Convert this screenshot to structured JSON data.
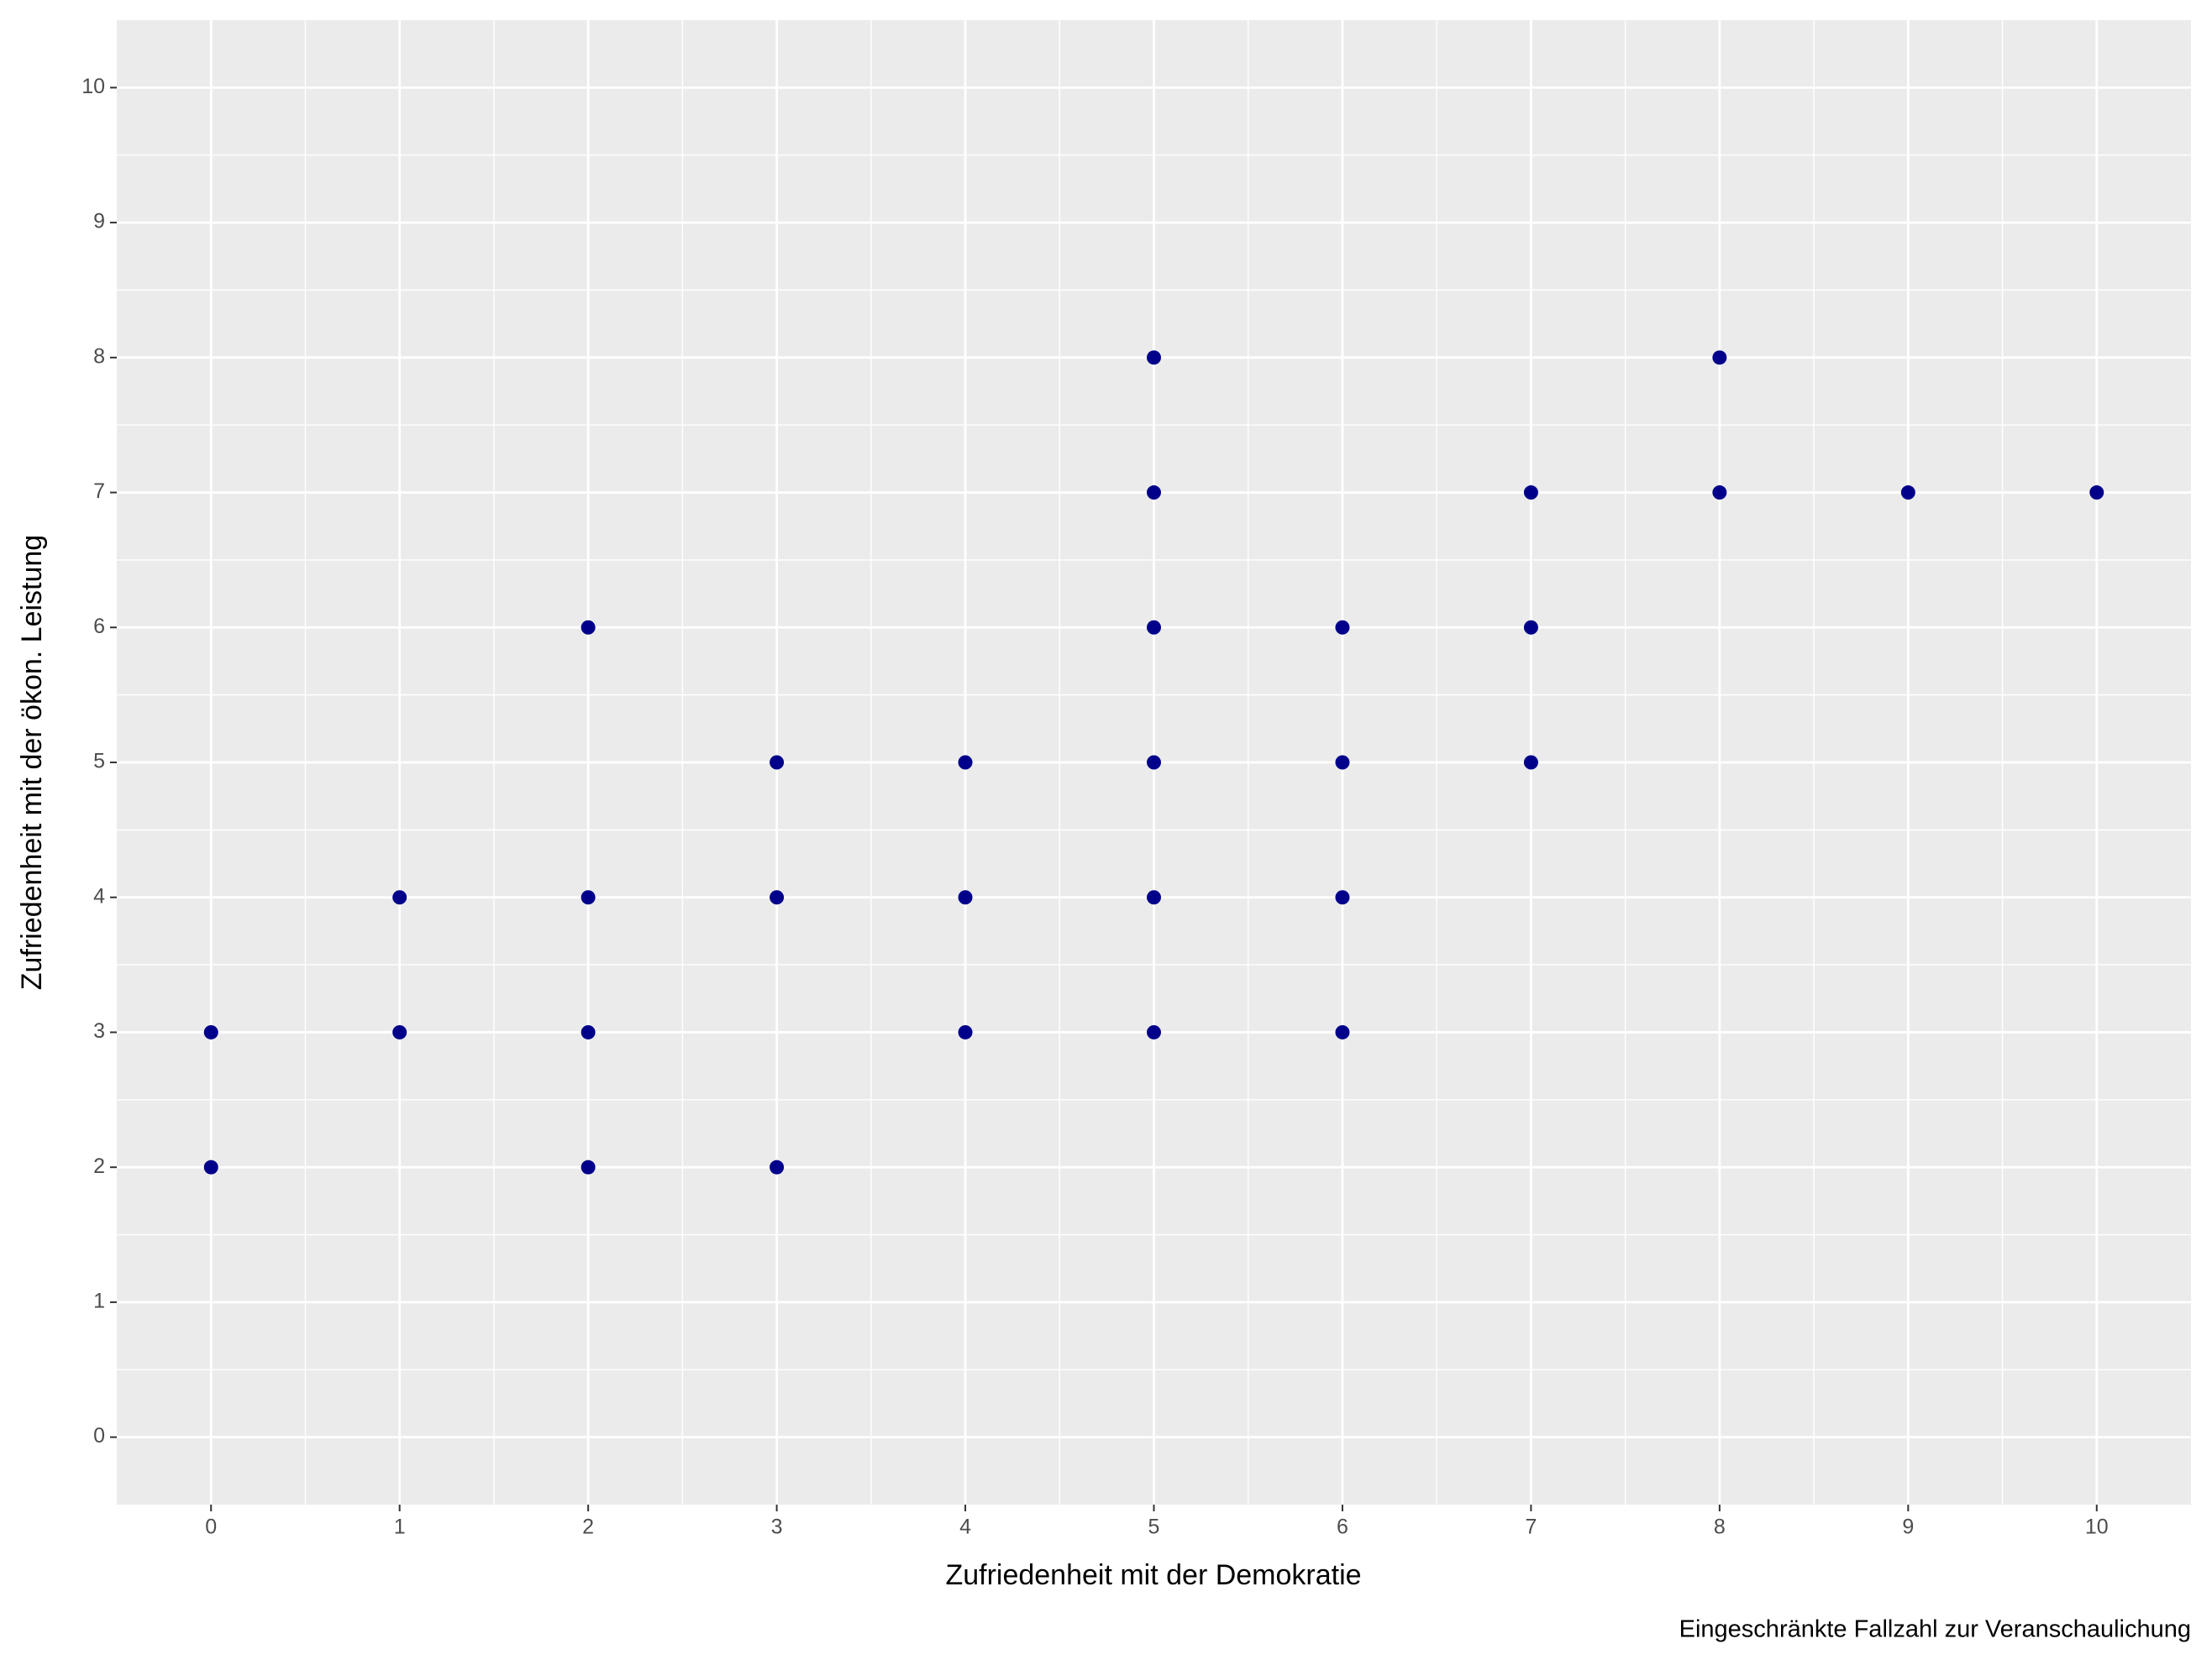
{
  "chart_data": {
    "type": "scatter",
    "x_label": "Zufriedenheit mit der Demokratie",
    "y_label": "Zufriedenheit mit der ökon. Leistung",
    "caption": "Eingeschränkte Fallzahl zur Veranschaulichung",
    "x": [
      0,
      0,
      1,
      1,
      2,
      2,
      2,
      2,
      3,
      3,
      3,
      4,
      4,
      4,
      5,
      5,
      5,
      5,
      5,
      5,
      6,
      6,
      6,
      6,
      7,
      7,
      7,
      8,
      8,
      9,
      10
    ],
    "values": [
      3,
      2,
      4,
      3,
      6,
      4,
      3,
      2,
      5,
      4,
      2,
      5,
      4,
      3,
      8,
      7,
      6,
      5,
      4,
      3,
      6,
      5,
      4,
      3,
      7,
      6,
      5,
      8,
      7,
      7,
      7
    ],
    "color": "#00008b",
    "xlim": [
      -0.5,
      10.5
    ],
    "ylim": [
      -0.5,
      10.5
    ],
    "xticks": [
      0,
      1,
      2,
      3,
      4,
      5,
      6,
      7,
      8,
      9,
      10
    ],
    "yticks": [
      0,
      1,
      2,
      3,
      4,
      5,
      6,
      7,
      8,
      9,
      10
    ],
    "grid": true
  }
}
